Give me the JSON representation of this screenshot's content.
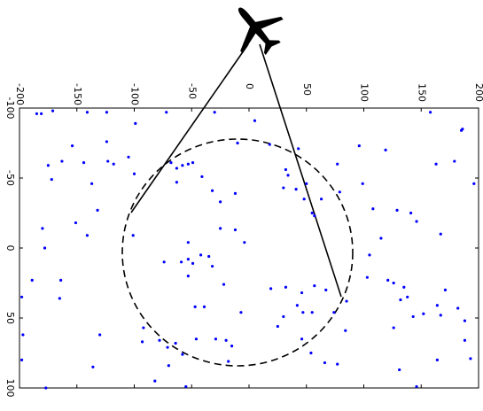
{
  "chart_data": {
    "type": "scatter",
    "color": "#0000ff",
    "grid": false,
    "xlim": [
      -200,
      200
    ],
    "ylim": [
      -100,
      100
    ],
    "xticks": [
      -200,
      -150,
      -100,
      -50,
      0,
      50,
      100,
      150,
      200
    ],
    "yticks": [
      -100,
      -50,
      0,
      50,
      100
    ],
    "x": [
      -185,
      -181,
      -171,
      -141,
      -124,
      -72,
      -30,
      5,
      -10,
      18,
      43,
      77,
      96,
      119,
      158,
      185,
      186,
      196,
      163,
      179,
      -175,
      -172,
      -163,
      -154,
      -144,
      -124,
      -123,
      -118,
      -105,
      -99,
      -100,
      -137,
      -68,
      -63,
      -58,
      -53,
      -49,
      -63,
      -41,
      -32,
      -25,
      -12,
      32,
      34,
      30,
      41,
      48,
      55,
      57,
      50,
      63,
      79,
      99,
      108,
      129,
      141,
      146,
      167,
      -132,
      -151,
      -141,
      -180,
      -178,
      -189,
      -164,
      -165,
      -198,
      -198,
      -177,
      -101,
      -53,
      -74,
      -59,
      -53,
      -49,
      -42,
      -35,
      -32,
      -25,
      -12,
      -4,
      -53,
      -22,
      -47,
      -39,
      -7,
      19,
      32,
      46,
      42,
      47,
      55,
      57,
      67,
      25,
      30,
      85,
      74,
      84,
      46,
      54,
      66,
      77,
      105,
      115,
      103,
      121,
      126,
      135,
      138,
      126,
      132,
      143,
      152,
      171,
      164,
      167,
      182,
      188,
      188,
      193,
      164,
      131,
      146,
      -197,
      -130,
      -136,
      -93,
      -78,
      -71,
      -64,
      -58,
      -46,
      -29,
      -20,
      -15,
      -55,
      -82,
      -70,
      -18,
      -92
    ],
    "y": [
      -96,
      -96,
      -98,
      -97,
      -97,
      -97,
      -97,
      -91,
      -75,
      -74,
      -71,
      -60,
      -73,
      -70,
      -97,
      -84,
      -85,
      -46,
      -60,
      -62,
      -59,
      -49,
      -62,
      -73,
      -61,
      -76,
      -62,
      -60,
      -65,
      -89,
      -53,
      -46,
      -61,
      -57,
      -59,
      -60,
      -61,
      -47,
      -51,
      -41,
      -33,
      -39,
      -56,
      -52,
      -43,
      -42,
      -35,
      -25,
      -23,
      -46,
      -35,
      -40,
      -46,
      -28,
      -27,
      -25,
      -19,
      -10,
      -27,
      -18,
      -9,
      -14,
      0,
      23,
      23,
      36,
      35,
      80,
      100,
      -9,
      -4,
      10,
      10,
      8,
      11,
      5,
      6,
      13,
      -14,
      -13,
      -4,
      20,
      26,
      42,
      42,
      46,
      29,
      28,
      32,
      41,
      46,
      46,
      27,
      30,
      56,
      49,
      38,
      46,
      59,
      65,
      75,
      82,
      83,
      5,
      -7,
      21,
      23,
      25,
      28,
      35,
      57,
      37,
      49,
      47,
      30,
      41,
      48,
      43,
      52,
      66,
      79,
      80,
      87,
      99,
      62,
      62,
      85,
      67,
      66,
      71,
      68,
      76,
      65,
      65,
      66,
      70,
      99,
      95,
      84,
      81,
      57
    ]
  }
}
